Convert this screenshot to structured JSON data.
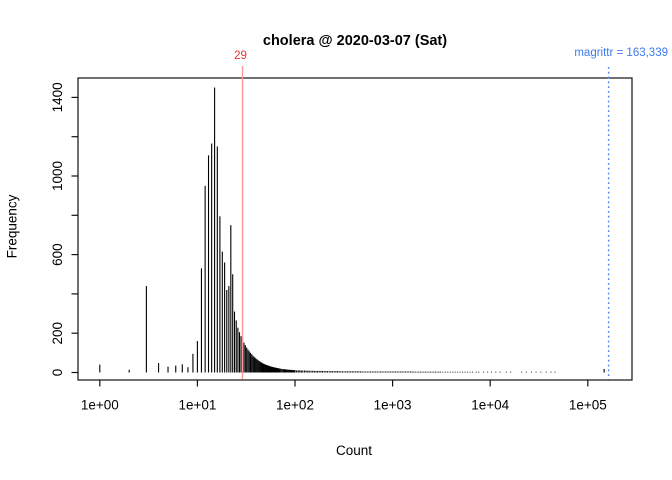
{
  "chart_data": {
    "type": "bar",
    "subtype": "histogram",
    "title": "cholera @ 2020-03-07 (Sat)",
    "xlabel": "Count",
    "ylabel": "Frequency",
    "x_scale": "log10",
    "grid": "off",
    "ylim": [
      0,
      1450
    ],
    "x_ticks": [
      {
        "value": 1,
        "label": "1e+00"
      },
      {
        "value": 10,
        "label": "1e+01"
      },
      {
        "value": 100,
        "label": "1e+02"
      },
      {
        "value": 1000,
        "label": "1e+03"
      },
      {
        "value": 10000,
        "label": "1e+04"
      },
      {
        "value": 100000,
        "label": "1e+05"
      }
    ],
    "y_ticks": [
      {
        "value": 0,
        "label": "0"
      },
      {
        "value": 200,
        "label": "200"
      },
      {
        "value": 400,
        "label": ""
      },
      {
        "value": 600,
        "label": "600"
      },
      {
        "value": 800,
        "label": ""
      },
      {
        "value": 1000,
        "label": "1000"
      },
      {
        "value": 1200,
        "label": ""
      },
      {
        "value": 1400,
        "label": "1400"
      }
    ],
    "bar_color": "#000000",
    "annotations": {
      "red_vline": {
        "x": 29,
        "label": "29",
        "line_color": "#ff9898",
        "label_color": "#e93434",
        "style": "solid"
      },
      "blue_vline": {
        "x": 163339,
        "label": "magrittr = 163,339",
        "line_color": "#4a83f0",
        "label_color": "#3d79ef",
        "style": "dotted"
      }
    },
    "bars": [
      [
        1,
        40
      ],
      [
        2,
        14
      ],
      [
        3,
        440
      ],
      [
        4,
        48
      ],
      [
        5,
        30
      ],
      [
        6,
        35
      ],
      [
        7,
        42
      ],
      [
        8,
        27
      ],
      [
        9,
        95
      ],
      [
        10,
        160
      ],
      [
        11,
        530
      ],
      [
        12,
        950
      ],
      [
        13,
        1105
      ],
      [
        14,
        1165
      ],
      [
        15,
        1450
      ],
      [
        16,
        1150
      ],
      [
        17,
        795
      ],
      [
        18,
        615
      ],
      [
        19,
        560
      ],
      [
        20,
        420
      ],
      [
        21,
        440
      ],
      [
        22,
        750
      ],
      [
        23,
        500
      ],
      [
        24,
        310
      ],
      [
        25,
        265
      ],
      [
        26,
        228
      ],
      [
        27,
        205
      ],
      [
        28,
        185
      ],
      [
        29,
        168
      ],
      [
        30,
        152
      ],
      [
        31,
        139
      ],
      [
        32,
        127
      ],
      [
        33,
        117
      ],
      [
        34,
        108
      ],
      [
        35,
        100
      ],
      [
        36,
        93
      ],
      [
        37,
        86
      ],
      [
        38,
        80
      ],
      [
        39,
        75
      ],
      [
        40,
        70
      ],
      [
        41,
        66
      ],
      [
        42,
        62
      ],
      [
        43,
        58
      ],
      [
        44,
        55
      ],
      [
        45,
        52
      ],
      [
        46,
        49
      ],
      [
        47,
        46
      ],
      [
        48,
        44
      ],
      [
        49,
        42
      ],
      [
        50,
        40
      ],
      [
        51,
        38
      ],
      [
        52,
        37
      ],
      [
        53,
        35
      ],
      [
        54,
        34
      ],
      [
        55,
        33
      ],
      [
        56,
        31
      ],
      [
        57,
        30
      ],
      [
        58,
        29
      ],
      [
        59,
        28
      ],
      [
        60,
        27
      ],
      [
        61,
        26
      ],
      [
        62,
        25
      ],
      [
        63,
        25
      ],
      [
        64,
        24
      ],
      [
        65,
        23
      ],
      [
        66,
        22
      ],
      [
        67,
        22
      ],
      [
        68,
        21
      ],
      [
        69,
        20
      ],
      [
        70,
        20
      ],
      [
        72,
        19
      ],
      [
        74,
        18
      ],
      [
        76,
        17
      ],
      [
        78,
        17
      ],
      [
        80,
        16
      ],
      [
        82,
        15
      ],
      [
        84,
        15
      ],
      [
        86,
        14
      ],
      [
        88,
        14
      ],
      [
        90,
        13
      ],
      [
        92,
        13
      ],
      [
        94,
        13
      ],
      [
        96,
        12
      ],
      [
        98,
        12
      ],
      [
        100,
        12
      ],
      [
        104,
        11
      ],
      [
        108,
        11
      ],
      [
        112,
        11
      ],
      [
        116,
        10
      ],
      [
        120,
        10
      ],
      [
        125,
        10
      ],
      [
        130,
        10
      ],
      [
        135,
        9
      ],
      [
        140,
        9
      ],
      [
        146,
        9
      ],
      [
        152,
        9
      ],
      [
        158,
        8
      ],
      [
        164,
        8
      ],
      [
        170,
        8
      ],
      [
        177,
        8
      ],
      [
        184,
        8
      ],
      [
        191,
        8
      ],
      [
        199,
        8
      ],
      [
        207,
        7
      ],
      [
        215,
        7
      ],
      [
        224,
        7
      ],
      [
        233,
        7
      ],
      [
        242,
        7
      ],
      [
        252,
        7
      ],
      [
        262,
        7
      ],
      [
        272,
        7
      ],
      [
        283,
        7
      ],
      [
        294,
        6
      ],
      [
        306,
        6
      ],
      [
        318,
        6
      ],
      [
        331,
        6
      ],
      [
        344,
        6
      ],
      [
        358,
        6
      ],
      [
        372,
        6
      ],
      [
        387,
        6
      ],
      [
        402,
        6
      ],
      [
        418,
        6
      ],
      [
        435,
        6
      ],
      [
        452,
        6
      ],
      [
        470,
        6
      ],
      [
        489,
        5
      ],
      [
        509,
        5
      ],
      [
        529,
        5
      ],
      [
        550,
        5
      ],
      [
        572,
        5
      ],
      [
        595,
        5
      ],
      [
        619,
        5
      ],
      [
        644,
        5
      ],
      [
        670,
        5
      ],
      [
        697,
        5
      ],
      [
        725,
        5
      ],
      [
        754,
        5
      ],
      [
        784,
        5
      ],
      [
        815,
        5
      ],
      [
        848,
        5
      ],
      [
        882,
        5
      ],
      [
        917,
        5
      ],
      [
        954,
        5
      ],
      [
        992,
        5
      ],
      [
        1032,
        5
      ],
      [
        1073,
        5
      ],
      [
        1116,
        5
      ],
      [
        1161,
        5
      ],
      [
        1207,
        5
      ],
      [
        1255,
        5
      ],
      [
        1305,
        5
      ],
      [
        1357,
        5
      ],
      [
        1411,
        5
      ],
      [
        1467,
        5
      ],
      [
        1526,
        5
      ],
      [
        1587,
        5
      ],
      [
        1650,
        4
      ],
      [
        1716,
        4
      ],
      [
        1785,
        4
      ],
      [
        1856,
        4
      ],
      [
        1930,
        4
      ],
      [
        2007,
        4
      ],
      [
        2087,
        4
      ],
      [
        2171,
        4
      ],
      [
        2258,
        4
      ],
      [
        2348,
        4
      ],
      [
        2442,
        4
      ],
      [
        2540,
        4
      ],
      [
        2641,
        4
      ],
      [
        2747,
        4
      ],
      [
        2857,
        4
      ],
      [
        2971,
        4
      ],
      [
        3090,
        4
      ],
      [
        3275,
        4
      ],
      [
        3471,
        4
      ],
      [
        3679,
        4
      ],
      [
        3900,
        4
      ],
      [
        4134,
        4
      ],
      [
        4382,
        4
      ],
      [
        4645,
        4
      ],
      [
        4924,
        4
      ],
      [
        5219,
        4
      ],
      [
        5532,
        4
      ],
      [
        5864,
        4
      ],
      [
        6216,
        4
      ],
      [
        6589,
        4
      ],
      [
        7200,
        4
      ],
      [
        7630,
        4
      ],
      [
        8550,
        4
      ],
      [
        9400,
        4
      ],
      [
        10300,
        4
      ],
      [
        11400,
        4
      ],
      [
        12600,
        4
      ],
      [
        14600,
        4
      ],
      [
        16200,
        4
      ],
      [
        21000,
        4
      ],
      [
        23500,
        4
      ],
      [
        26500,
        4
      ],
      [
        29500,
        4
      ],
      [
        33000,
        4
      ],
      [
        37500,
        4
      ],
      [
        42000,
        4
      ],
      [
        46000,
        4
      ],
      [
        147000,
        18
      ]
    ]
  }
}
